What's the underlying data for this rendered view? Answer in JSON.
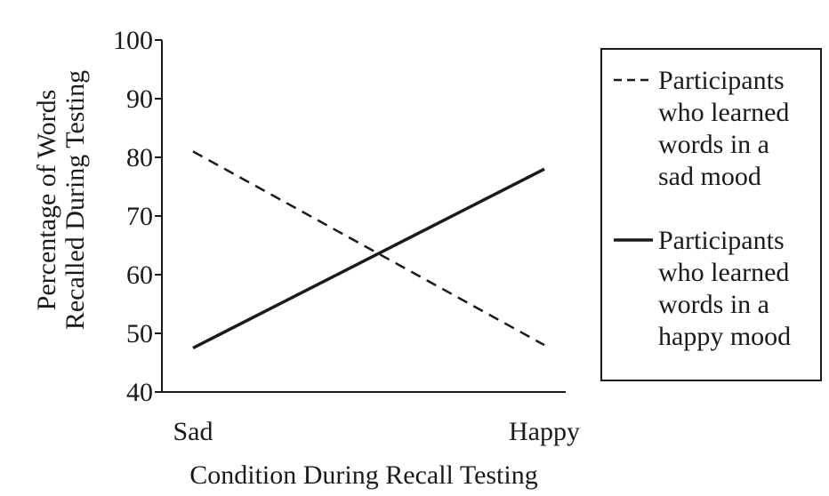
{
  "chart_data": {
    "type": "line",
    "categories": [
      "Sad",
      "Happy"
    ],
    "series": [
      {
        "name": "Participants who learned words in a sad mood",
        "values": [
          81,
          48
        ],
        "style": "dashed"
      },
      {
        "name": "Participants who learned words in a happy mood",
        "values": [
          47.5,
          78
        ],
        "style": "solid"
      }
    ],
    "legend_lines": [
      [
        "Participants",
        "who learned",
        "words in a",
        "sad mood"
      ],
      [
        "Participants",
        "who learned",
        "words in a",
        "happy mood"
      ]
    ],
    "xlabel": "Condition During Recall Testing",
    "ylabel_lines": [
      "Percentage of Words",
      "Recalled During Testing"
    ],
    "ylim": [
      40,
      100
    ],
    "yticks": [
      40,
      50,
      60,
      70,
      80,
      90,
      100
    ],
    "grid": false,
    "legend_position": "right",
    "line_color": "#1a1a1a"
  }
}
